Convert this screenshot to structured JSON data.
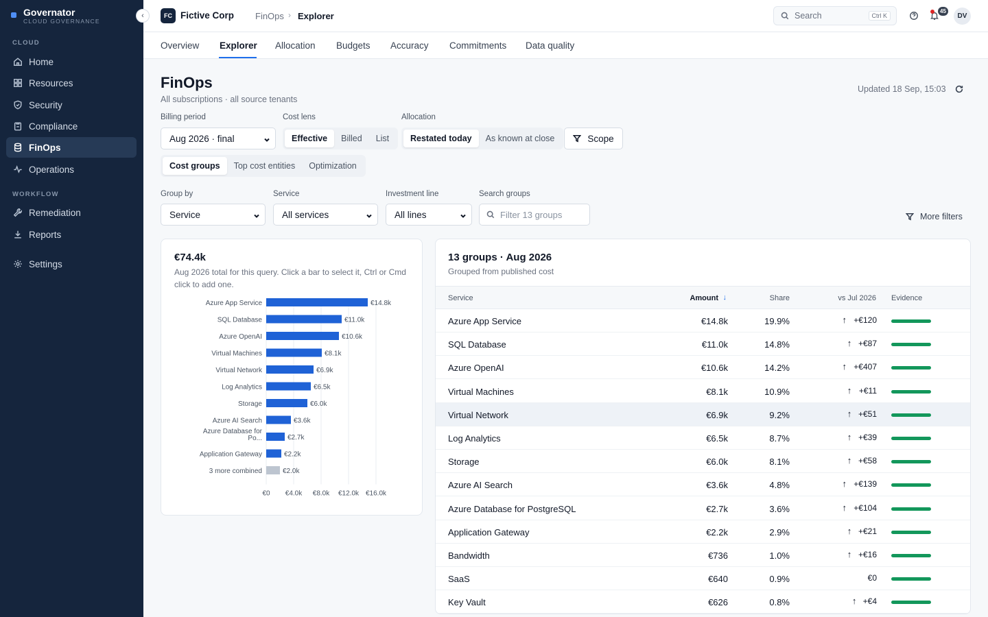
{
  "app": {
    "name": "Governator",
    "subtitle": "CLOUD GOVERNANCE"
  },
  "sidebar": {
    "sections": [
      {
        "label": "CLOUD"
      },
      {
        "label": "WORKFLOW"
      }
    ],
    "items": [
      {
        "label": "Home",
        "icon": "home-icon"
      },
      {
        "label": "Resources",
        "icon": "grid-icon"
      },
      {
        "label": "Security",
        "icon": "shield-icon"
      },
      {
        "label": "Compliance",
        "icon": "clipboard-icon"
      },
      {
        "label": "FinOps",
        "icon": "database-icon",
        "active": true
      },
      {
        "label": "Operations",
        "icon": "activity-icon"
      },
      {
        "label": "Remediation",
        "icon": "wrench-icon"
      },
      {
        "label": "Reports",
        "icon": "download-icon"
      },
      {
        "label": "Settings",
        "icon": "gear-icon"
      }
    ]
  },
  "topbar": {
    "org_badge": "FC",
    "org_name": "Fictive Corp",
    "breadcrumb": [
      "FinOps",
      "Explorer"
    ],
    "search_placeholder": "Search",
    "search_shortcut": "Ctrl K",
    "notification_count": "45",
    "avatar": "DV"
  },
  "tabs": [
    "Overview",
    "Explorer",
    "Allocation",
    "Budgets",
    "Accuracy",
    "Commitments",
    "Data quality"
  ],
  "active_tab": "Explorer",
  "header": {
    "title": "FinOps",
    "subtitle": "All subscriptions · all source tenants",
    "updated": "Updated 18 Sep, 15:03"
  },
  "controls": {
    "billing_period_label": "Billing period",
    "billing_period_value": "Aug 2026 · final",
    "cost_lens_label": "Cost lens",
    "cost_lens_options": [
      "Effective",
      "Billed",
      "List"
    ],
    "cost_lens_selected": "Effective",
    "allocation_label": "Allocation",
    "allocation_options": [
      "Restated today",
      "As known at close"
    ],
    "allocation_selected": "Restated today",
    "scope_label": "Scope",
    "view_options": [
      "Cost groups",
      "Top cost entities",
      "Optimization"
    ],
    "view_selected": "Cost groups",
    "group_by_label": "Group by",
    "group_by_value": "Service",
    "service_label": "Service",
    "service_value": "All services",
    "investment_label": "Investment line",
    "investment_value": "All lines",
    "search_groups_label": "Search groups",
    "search_groups_placeholder": "Filter 13 groups",
    "more_filters": "More filters"
  },
  "summary": {
    "total": "€74.4k",
    "description": "Aug 2026 total for this query. Click a bar to select it, Ctrl or Cmd click to add one."
  },
  "chart_data": {
    "type": "bar",
    "orientation": "horizontal",
    "categories": [
      "Azure App Service",
      "SQL Database",
      "Azure OpenAI",
      "Virtual Machines",
      "Virtual Network",
      "Log Analytics",
      "Storage",
      "Azure AI Search",
      "Azure Database for Po...",
      "Application Gateway",
      "3 more combined"
    ],
    "values": [
      14800,
      11000,
      10600,
      8100,
      6900,
      6500,
      6000,
      3600,
      2700,
      2200,
      2000
    ],
    "value_labels": [
      "€14.8k",
      "€11.0k",
      "€10.6k",
      "€8.1k",
      "€6.9k",
      "€6.5k",
      "€6.0k",
      "€3.6k",
      "€2.7k",
      "€2.2k",
      "€2.0k"
    ],
    "xticks": [
      "€0",
      "€4.0k",
      "€8.0k",
      "€12.0k",
      "€16.0k"
    ],
    "xlim": [
      0,
      16000
    ],
    "bar_color": "#1f62d6",
    "combined_color": "#bdc5d0",
    "grid": true
  },
  "table": {
    "title": "13 groups · Aug 2026",
    "subtitle": "Grouped from published cost",
    "columns": [
      "Service",
      "Amount",
      "Share",
      "vs Jul 2026",
      "Evidence"
    ],
    "sort_column": "Amount",
    "rows": [
      {
        "name": "Azure App Service",
        "amount": "€14.8k",
        "share": "19.9%",
        "delta": "+€120",
        "evidence": 1.0
      },
      {
        "name": "SQL Database",
        "amount": "€11.0k",
        "share": "14.8%",
        "delta": "+€87",
        "evidence": 1.0
      },
      {
        "name": "Azure OpenAI",
        "amount": "€10.6k",
        "share": "14.2%",
        "delta": "+€407",
        "evidence": 1.0
      },
      {
        "name": "Virtual Machines",
        "amount": "€8.1k",
        "share": "10.9%",
        "delta": "+€11",
        "evidence": 1.0
      },
      {
        "name": "Virtual Network",
        "amount": "€6.9k",
        "share": "9.2%",
        "delta": "+€51",
        "evidence": 1.0,
        "highlighted": true
      },
      {
        "name": "Log Analytics",
        "amount": "€6.5k",
        "share": "8.7%",
        "delta": "+€39",
        "evidence": 1.0
      },
      {
        "name": "Storage",
        "amount": "€6.0k",
        "share": "8.1%",
        "delta": "+€58",
        "evidence": 1.0
      },
      {
        "name": "Azure AI Search",
        "amount": "€3.6k",
        "share": "4.8%",
        "delta": "+€139",
        "evidence": 1.0
      },
      {
        "name": "Azure Database for PostgreSQL",
        "amount": "€2.7k",
        "share": "3.6%",
        "delta": "+€104",
        "evidence": 1.0
      },
      {
        "name": "Application Gateway",
        "amount": "€2.2k",
        "share": "2.9%",
        "delta": "+€21",
        "evidence": 1.0
      },
      {
        "name": "Bandwidth",
        "amount": "€736",
        "share": "1.0%",
        "delta": "+€16",
        "evidence": 1.0
      },
      {
        "name": "SaaS",
        "amount": "€640",
        "share": "0.9%",
        "delta": "€0",
        "evidence": 1.0
      },
      {
        "name": "Key Vault",
        "amount": "€626",
        "share": "0.8%",
        "delta": "+€4",
        "evidence": 1.0
      }
    ]
  }
}
